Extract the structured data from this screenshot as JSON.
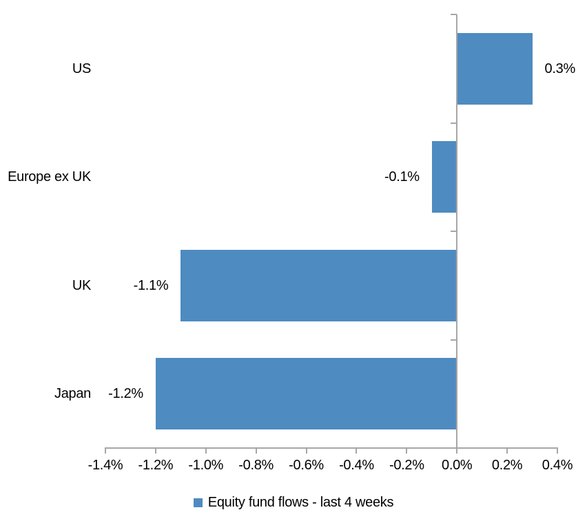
{
  "chart_data": {
    "type": "bar",
    "orientation": "horizontal",
    "categories": [
      "US",
      "Europe ex UK",
      "UK",
      "Japan"
    ],
    "series": [
      {
        "name": "Equity fund flows - last 4 weeks",
        "values": [
          0.3,
          -0.1,
          -1.1,
          -1.2
        ],
        "value_labels": [
          "0.3%",
          "-0.1%",
          "-1.1%",
          "-1.2%"
        ]
      }
    ],
    "x_axis": {
      "min": -1.4,
      "max": 0.4,
      "step": 0.2,
      "tick_labels": [
        "-1.4%",
        "-1.2%",
        "-1.0%",
        "-0.8%",
        "-0.6%",
        "-0.4%",
        "-0.2%",
        "0.0%",
        "0.2%",
        "0.4%"
      ]
    },
    "legend": {
      "position": "bottom",
      "label": "Equity fund flows - last 4 weeks"
    },
    "grid": false,
    "colors": {
      "bar": "#4e8bc0",
      "axis": "#a6a6a6",
      "text": "#000000",
      "background": "#ffffff"
    }
  }
}
